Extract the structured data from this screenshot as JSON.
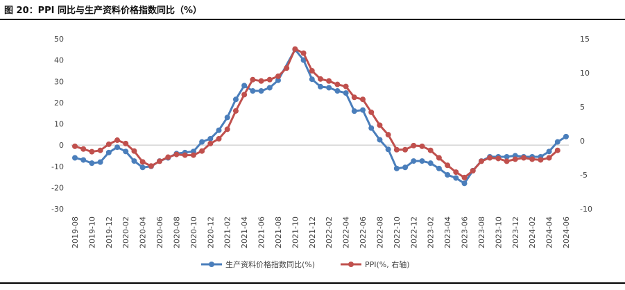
{
  "figure": {
    "title": "图 20：PPI 同比与生产资料价格指数同比（%）"
  },
  "chart_data": {
    "type": "line",
    "title": "图 20：PPI 同比与生产资料价格指数同比（%）",
    "categories": [
      "2019-08",
      "2019-09",
      "2019-10",
      "2019-11",
      "2019-12",
      "2020-01",
      "2020-02",
      "2020-03",
      "2020-04",
      "2020-05",
      "2020-06",
      "2020-07",
      "2020-08",
      "2020-09",
      "2020-10",
      "2020-11",
      "2020-12",
      "2021-01",
      "2021-02",
      "2021-03",
      "2021-04",
      "2021-05",
      "2021-06",
      "2021-07",
      "2021-08",
      "2021-09",
      "2021-10",
      "2021-11",
      "2021-12",
      "2022-01",
      "2022-02",
      "2022-03",
      "2022-04",
      "2022-05",
      "2022-06",
      "2022-07",
      "2022-08",
      "2022-09",
      "2022-10",
      "2022-11",
      "2022-12",
      "2023-01",
      "2023-02",
      "2023-03",
      "2023-04",
      "2023-05",
      "2023-06",
      "2023-07",
      "2023-08",
      "2023-09",
      "2023-10",
      "2023-11",
      "2023-12",
      "2024-01",
      "2024-02",
      "2024-03",
      "2024-04",
      "2024-05",
      "2024-06"
    ],
    "x_tick_labels": [
      "2019-08",
      "2019-10",
      "2019-12",
      "2020-02",
      "2020-04",
      "2020-06",
      "2020-08",
      "2020-10",
      "2020-12",
      "2021-02",
      "2021-04",
      "2021-06",
      "2021-08",
      "2021-10",
      "2021-12",
      "2022-02",
      "2022-04",
      "2022-06",
      "2022-08",
      "2022-10",
      "2022-12",
      "2023-02",
      "2023-04",
      "2023-06",
      "2023-08",
      "2023-10",
      "2023-12",
      "2024-02",
      "2024-04",
      "2024-06"
    ],
    "left_axis": {
      "ylim": [
        -30,
        50
      ],
      "ticks": [
        50,
        40,
        30,
        20,
        10,
        0,
        -10,
        -20,
        -30
      ]
    },
    "right_axis": {
      "ylim": [
        -10,
        15
      ],
      "ticks": [
        15,
        10,
        5,
        0,
        -5,
        -10
      ]
    },
    "series": [
      {
        "name": "生产资料价格指数同比(%)",
        "axis": "left",
        "color": "#4a7ebb",
        "values": [
          -6,
          -7,
          -8.5,
          -8,
          -3.5,
          -1,
          -3,
          -7.5,
          -10.5,
          -10,
          -7.5,
          -6,
          -4,
          -3.5,
          -3,
          1.5,
          3,
          7,
          13,
          21.5,
          28,
          25.5,
          25.5,
          27,
          30.5,
          null,
          45,
          40,
          31,
          27.5,
          27,
          25.5,
          24.5,
          16,
          16.5,
          8,
          2.5,
          -2,
          -11,
          -10.5,
          -7.5,
          -7.5,
          -8.5,
          -11,
          -14,
          -15.5,
          -18,
          -12,
          -7.5,
          -5.5,
          -5.5,
          -5.5,
          -5,
          -5.5,
          -5.5,
          -5.5,
          -3,
          1.5,
          4
        ]
      },
      {
        "name": "PPI(%, 右轴)",
        "axis": "right",
        "color": "#c0504d",
        "values": [
          -0.8,
          -1.2,
          -1.6,
          -1.4,
          -0.5,
          0.1,
          -0.4,
          -1.5,
          -3.1,
          -3.7,
          -3.0,
          -2.4,
          -2.0,
          -2.1,
          -2.1,
          -1.5,
          -0.4,
          0.3,
          1.7,
          4.4,
          6.8,
          9.0,
          8.8,
          9.0,
          9.5,
          10.7,
          13.5,
          12.9,
          10.3,
          9.1,
          8.8,
          8.3,
          8.0,
          6.4,
          6.1,
          4.2,
          2.3,
          0.9,
          -1.3,
          -1.3,
          -0.7,
          -0.8,
          -1.4,
          -2.5,
          -3.6,
          -4.6,
          -5.4,
          -4.4,
          -3.0,
          -2.5,
          -2.6,
          -3.0,
          -2.7,
          -2.5,
          -2.7,
          -2.8,
          -2.5,
          -1.4,
          null
        ]
      }
    ],
    "legend": {
      "position": "bottom-center"
    },
    "grid": false
  }
}
